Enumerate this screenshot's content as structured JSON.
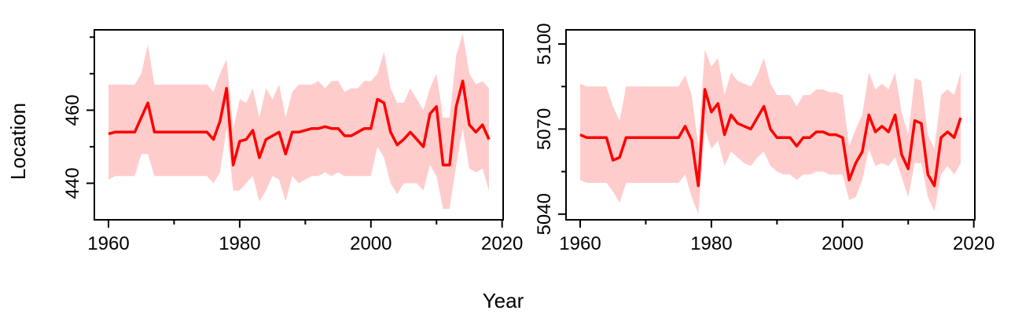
{
  "figure": {
    "xlabel": "Year",
    "ylabel": "Location"
  },
  "colors": {
    "line": "#ff0000",
    "band": "#ffcccc",
    "axis": "#000000"
  },
  "chart_data": [
    {
      "type": "line",
      "xlim": [
        1960,
        2018
      ],
      "ylim": [
        430,
        482
      ],
      "xticks": [
        1960,
        1980,
        2000,
        2020
      ],
      "xtick_labels": [
        "1960",
        "1980",
        "2000",
        "2020"
      ],
      "yticks": [
        440,
        460
      ],
      "ytick_labels": [
        "440",
        "460"
      ],
      "band_label_opacity": 0.2,
      "x": [
        1960,
        1961,
        1962,
        1963,
        1964,
        1965,
        1966,
        1967,
        1968,
        1969,
        1970,
        1971,
        1972,
        1973,
        1974,
        1975,
        1976,
        1977,
        1978,
        1979,
        1980,
        1981,
        1982,
        1983,
        1984,
        1985,
        1986,
        1987,
        1988,
        1989,
        1990,
        1991,
        1992,
        1993,
        1994,
        1995,
        1996,
        1997,
        1998,
        1999,
        2000,
        2001,
        2002,
        2003,
        2004,
        2005,
        2006,
        2007,
        2008,
        2009,
        2010,
        2011,
        2012,
        2013,
        2014,
        2015,
        2016,
        2017,
        2018
      ],
      "series": [
        {
          "values": [
            453.5,
            454,
            454,
            454,
            454,
            458,
            462,
            454,
            454,
            454,
            454,
            454,
            454,
            454,
            454,
            454,
            452,
            457,
            466,
            445,
            451.5,
            452,
            454.5,
            447,
            452,
            453,
            454,
            448,
            454,
            454,
            454.5,
            455,
            455,
            455.5,
            455,
            455,
            453,
            453,
            454,
            455,
            455,
            463,
            462,
            454,
            450.5,
            452,
            454,
            452,
            450,
            459,
            461,
            445,
            445,
            461,
            468,
            456,
            454,
            456,
            452
          ],
          "lower": [
            441,
            442,
            442,
            442,
            442,
            448,
            448,
            442,
            442,
            442,
            442,
            442,
            442,
            442,
            442,
            442,
            440,
            443,
            455,
            438,
            438,
            440,
            442,
            435,
            438,
            442,
            441,
            435,
            442,
            440,
            441,
            442,
            442,
            443,
            442,
            443,
            442,
            442,
            442,
            442,
            442,
            450,
            447,
            440,
            437,
            440,
            440,
            440,
            438,
            445,
            442,
            433,
            433,
            445,
            455,
            444,
            443,
            444,
            438
          ],
          "upper": [
            467,
            467,
            467,
            467,
            467,
            470,
            478,
            467,
            467,
            467,
            467,
            467,
            467,
            467,
            467,
            467,
            465,
            470,
            474,
            455,
            463,
            462,
            466,
            458,
            466,
            463,
            467,
            458,
            465,
            467,
            467,
            467,
            468,
            466,
            468,
            468,
            465,
            466,
            466,
            468,
            468,
            470,
            476,
            466,
            462,
            462,
            466,
            463,
            460,
            466,
            470,
            458,
            458,
            475,
            481,
            470,
            467,
            468,
            466
          ]
        }
      ]
    },
    {
      "type": "line",
      "xlim": [
        1960,
        2018
      ],
      "ylim": [
        5038,
        5105
      ],
      "xticks": [
        1960,
        1980,
        2000,
        2020
      ],
      "xtick_labels": [
        "1960",
        "1980",
        "2000",
        "2020"
      ],
      "yticks": [
        5040,
        5070,
        5100
      ],
      "ytick_labels": [
        "5040",
        "5070",
        "5100"
      ],
      "x": [
        1960,
        1961,
        1962,
        1963,
        1964,
        1965,
        1966,
        1967,
        1968,
        1969,
        1970,
        1971,
        1972,
        1973,
        1974,
        1975,
        1976,
        1977,
        1978,
        1979,
        1980,
        1981,
        1982,
        1983,
        1984,
        1985,
        1986,
        1987,
        1988,
        1989,
        1990,
        1991,
        1992,
        1993,
        1994,
        1995,
        1996,
        1997,
        1998,
        1999,
        2000,
        2001,
        2002,
        2003,
        2004,
        2005,
        2006,
        2007,
        2008,
        2009,
        2010,
        2011,
        2012,
        2013,
        2014,
        2015,
        2016,
        2017,
        2018
      ],
      "series": [
        {
          "values": [
            5068,
            5067,
            5067,
            5067,
            5067,
            5059,
            5060,
            5067,
            5067,
            5067,
            5067,
            5067,
            5067,
            5067,
            5067,
            5067,
            5071,
            5066,
            5050,
            5084,
            5076,
            5079,
            5068,
            5075,
            5072,
            5071,
            5070,
            5074,
            5078,
            5070,
            5067,
            5067,
            5067,
            5064,
            5067,
            5067,
            5069,
            5069,
            5068,
            5068,
            5067,
            5052,
            5058,
            5062,
            5075,
            5069,
            5071,
            5069,
            5075,
            5061,
            5056,
            5073,
            5072,
            5054,
            5050,
            5067,
            5069,
            5067,
            5074
          ],
          "lower": [
            5052,
            5051,
            5051,
            5051,
            5051,
            5048,
            5044,
            5051,
            5051,
            5051,
            5051,
            5051,
            5051,
            5051,
            5051,
            5051,
            5054,
            5046,
            5040,
            5070,
            5063,
            5066,
            5057,
            5062,
            5060,
            5058,
            5057,
            5060,
            5062,
            5057,
            5055,
            5054,
            5054,
            5052,
            5054,
            5054,
            5055,
            5055,
            5054,
            5054,
            5054,
            5045,
            5046,
            5052,
            5063,
            5057,
            5058,
            5057,
            5060,
            5053,
            5046,
            5058,
            5058,
            5046,
            5041,
            5054,
            5057,
            5054,
            5058
          ],
          "upper": [
            5086,
            5085,
            5085,
            5085,
            5085,
            5078,
            5073,
            5085,
            5085,
            5085,
            5085,
            5085,
            5085,
            5085,
            5085,
            5085,
            5089,
            5082,
            5064,
            5098,
            5092,
            5095,
            5082,
            5090,
            5087,
            5086,
            5085,
            5089,
            5095,
            5086,
            5082,
            5082,
            5082,
            5078,
            5082,
            5082,
            5084,
            5084,
            5083,
            5083,
            5082,
            5064,
            5070,
            5075,
            5090,
            5084,
            5086,
            5084,
            5090,
            5076,
            5068,
            5088,
            5087,
            5068,
            5063,
            5082,
            5084,
            5082,
            5090
          ]
        }
      ]
    }
  ]
}
